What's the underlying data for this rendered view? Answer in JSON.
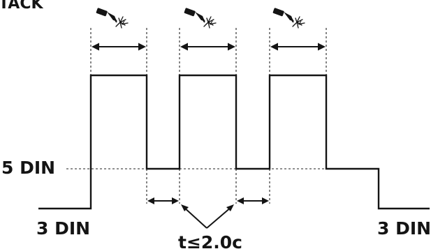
{
  "labels": {
    "mode": "TACK",
    "high_level": "5 DIN",
    "low_level_left": "3 DIN",
    "low_level_right": "3 DIN",
    "pause_time": "t≤2.0с"
  },
  "icons": {
    "torch": "welding-torch-icon",
    "sparks": "spark-icon"
  },
  "colors": {
    "line": "#141414",
    "background": "#ffffff"
  }
}
